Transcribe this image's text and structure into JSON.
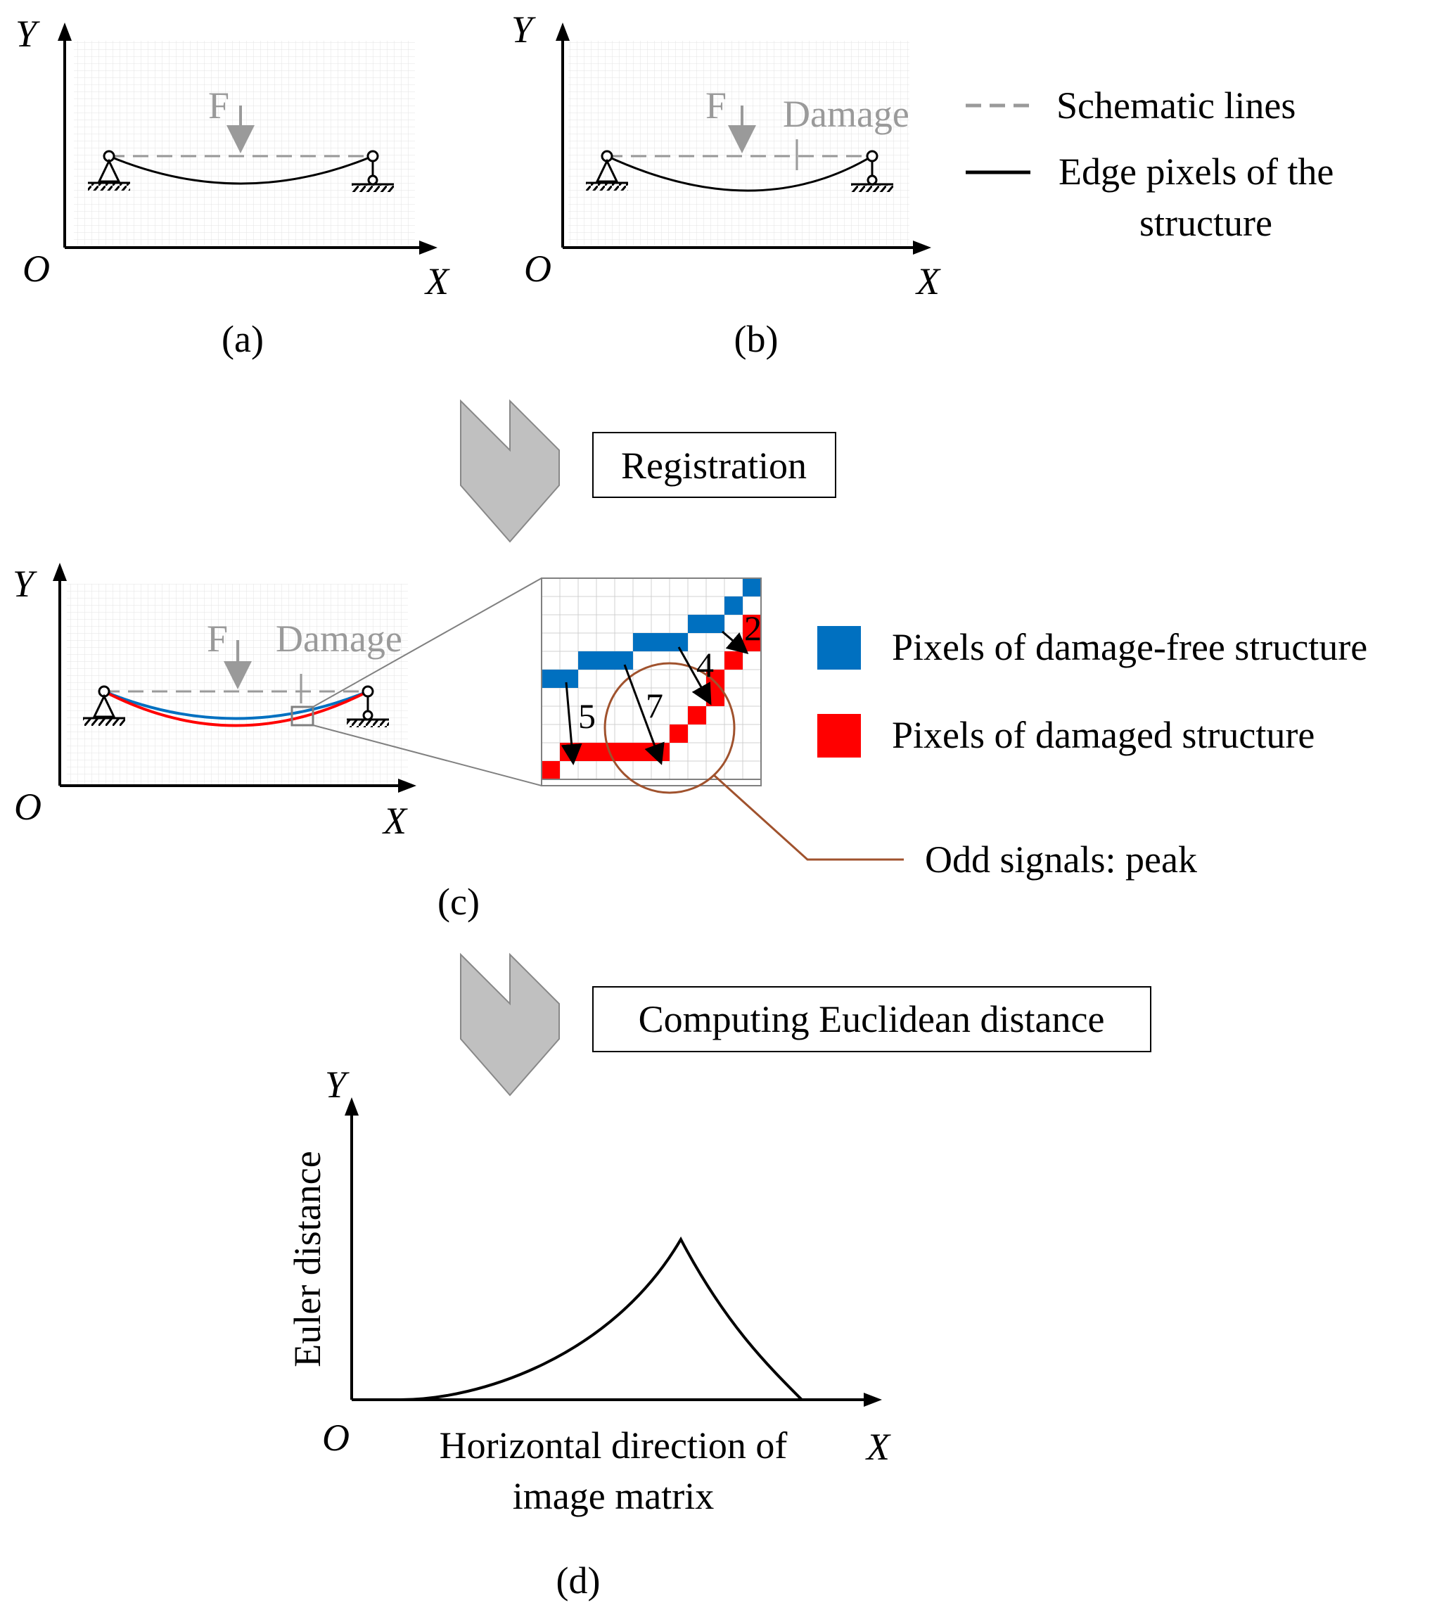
{
  "labels": {
    "axis_y": "Y",
    "axis_x": "X",
    "origin": "O",
    "force": "F",
    "damage": "Damage",
    "caption_a": "(a)",
    "caption_b": "(b)",
    "caption_c": "(c)",
    "caption_d": "(d)",
    "step_registration": "Registration",
    "step_distance": "Computing Euclidean distance",
    "odd_signals": "Odd signals: peak",
    "chart_y_label": "Euler distance",
    "chart_x_label_line1": "Horizontal direction of",
    "chart_x_label_line2": "image matrix"
  },
  "legend_top": [
    {
      "label": "Schematic lines",
      "style": "dashed",
      "color": "#9a9a9a"
    },
    {
      "label_line1": "Edge pixels of the",
      "label_line2": "structure",
      "style": "solid",
      "color": "#000000"
    }
  ],
  "legend_pixels": [
    {
      "label": "Pixels of damage-free structure",
      "color": "#0070c0"
    },
    {
      "label": "Pixels of damaged structure",
      "color": "#ff0000"
    }
  ],
  "zoom_distances": [
    "5",
    "7",
    "4",
    "2"
  ],
  "colors": {
    "blue": "#0070c0",
    "red": "#ff0000",
    "schematic": "#9a9a9a",
    "grid": "#dcdcdc",
    "arrow_fill": "#c0c0c0",
    "circle": "#a0522d"
  }
}
